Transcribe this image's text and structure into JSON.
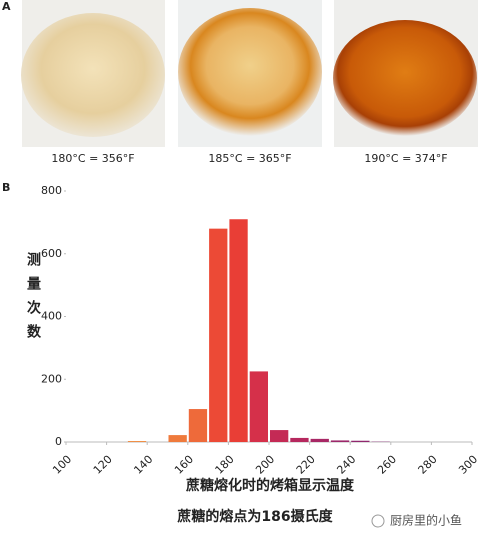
{
  "figure": {
    "panel_a_label": "A",
    "photo_captions": [
      "180°C = 356°F",
      "185°C = 365°F",
      "190°C = 374°F"
    ],
    "panel_b_label": "B",
    "caption": "蔗糖的熔点为186摄氏度",
    "watermark": "厨房里的小鱼"
  },
  "chart_data": {
    "type": "histogram",
    "y_label": "测量次数",
    "x_label": "蔗糖熔化时的烤箱显示温度",
    "bins": [
      100,
      110,
      120,
      130,
      140,
      150,
      160,
      170,
      180,
      190,
      200,
      210,
      220,
      230,
      240,
      250,
      260,
      270,
      280,
      290,
      300
    ],
    "values": [
      0,
      0,
      0,
      3,
      0,
      22,
      105,
      680,
      710,
      225,
      38,
      13,
      10,
      5,
      4,
      1,
      0,
      0,
      0,
      0
    ],
    "colors": [
      "#f08a3c",
      "#f08a3c",
      "#f08a3c",
      "#f0893c",
      "#ef803c",
      "#ef7a3c",
      "#ee6a3a",
      "#ec4a36",
      "#e93e36",
      "#d5304a",
      "#c42a55",
      "#b6285e",
      "#a82765",
      "#9c276a",
      "#90276e",
      "#862770",
      "#7c2772",
      "#742773",
      "#6c2774",
      "#642775"
    ],
    "xlim": [
      100,
      300
    ],
    "xticks": [
      100,
      120,
      140,
      160,
      180,
      200,
      220,
      240,
      260,
      280,
      300
    ],
    "ylim": [
      0,
      800
    ],
    "yticks": [
      0,
      200,
      400,
      600,
      800
    ],
    "grid": false
  }
}
